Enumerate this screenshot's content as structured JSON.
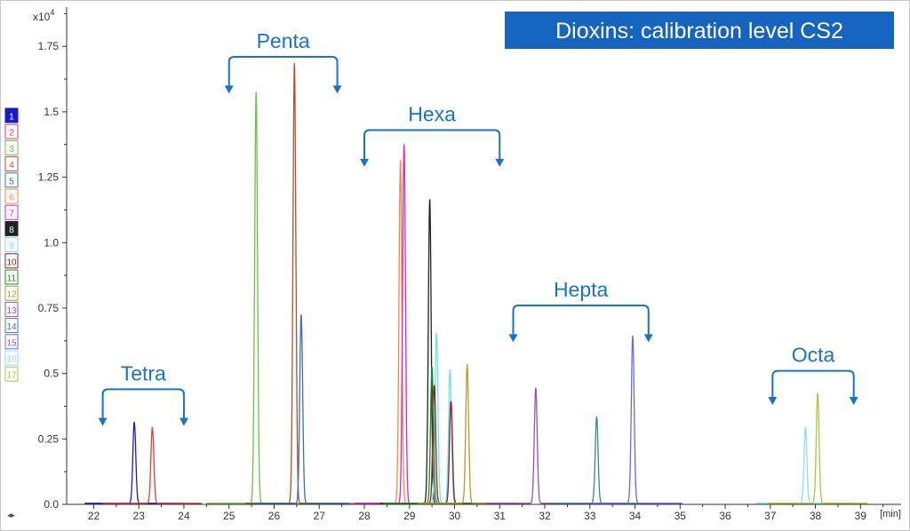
{
  "chart_data": {
    "type": "line",
    "title": "Dioxins: calibration level CS2",
    "xlabel": "[min]",
    "ylabel": "",
    "y_multiplier_label": "x10",
    "y_multiplier_exponent": "4",
    "xlim": [
      21.4,
      39.9
    ],
    "ylim": [
      0,
      1.9
    ],
    "x_ticks": [
      22,
      23,
      24,
      25,
      26,
      27,
      28,
      29,
      30,
      31,
      32,
      33,
      34,
      35,
      36,
      37,
      38,
      39
    ],
    "y_ticks": [
      0.0,
      0.25,
      0.5,
      0.75,
      1.0,
      1.25,
      1.5,
      1.75
    ],
    "y_tick_labels": [
      "0.0",
      "0.25",
      "0.5",
      "0.75",
      "1.0",
      "1.25",
      "1.5",
      "1.75"
    ],
    "grid": false,
    "legend_position": "left",
    "series": [
      {
        "name": "1",
        "color": "#1a1acc",
        "peaks": [
          [
            22.9,
            0.31
          ]
        ]
      },
      {
        "name": "2",
        "color": "#e0403a",
        "peaks": [
          [
            23.3,
            0.29
          ]
        ]
      },
      {
        "name": "3",
        "color": "#6cc04a",
        "peaks": [
          [
            25.6,
            1.57
          ]
        ]
      },
      {
        "name": "4",
        "color": "#b0512c",
        "peaks": [
          [
            26.45,
            1.68
          ]
        ]
      },
      {
        "name": "5",
        "color": "#3a6fb0",
        "peaks": [
          [
            26.6,
            0.72
          ]
        ]
      },
      {
        "name": "6",
        "color": "#f08a3c",
        "peaks": [
          [
            28.8,
            1.31
          ]
        ]
      },
      {
        "name": "7",
        "color": "#e020c8",
        "peaks": [
          [
            28.88,
            1.37
          ]
        ]
      },
      {
        "name": "8",
        "color": "#222222",
        "peaks": [
          [
            29.45,
            1.16
          ]
        ]
      },
      {
        "name": "9",
        "color": "#70e0f0",
        "peaks": [
          [
            29.6,
            0.65
          ],
          [
            29.9,
            0.51
          ]
        ]
      },
      {
        "name": "10",
        "color": "#8a1f1f",
        "peaks": [
          [
            29.55,
            0.45
          ],
          [
            29.92,
            0.39
          ]
        ]
      },
      {
        "name": "11",
        "color": "#1f8a2a",
        "peaks": [
          [
            29.5,
            0.52
          ]
        ]
      },
      {
        "name": "12",
        "color": "#a8a02a",
        "peaks": [
          [
            30.28,
            0.53
          ]
        ]
      },
      {
        "name": "13",
        "color": "#9a50b0",
        "peaks": [
          [
            31.8,
            0.44
          ]
        ]
      },
      {
        "name": "14",
        "color": "#3a8a82",
        "peaks": [
          [
            33.15,
            0.33
          ]
        ]
      },
      {
        "name": "15",
        "color": "#6a6ae8",
        "peaks": [
          [
            33.95,
            0.64
          ]
        ]
      },
      {
        "name": "16",
        "color": "#8ae0f0",
        "peaks": [
          [
            37.78,
            0.29
          ]
        ]
      },
      {
        "name": "17",
        "color": "#a8c83a",
        "peaks": [
          [
            38.05,
            0.42
          ]
        ]
      }
    ],
    "annotations": [
      {
        "label": "Tetra",
        "x_from": 22.2,
        "x_to": 24.0,
        "y_bracket": 0.44,
        "y_arrow": 0.31
      },
      {
        "label": "Penta",
        "x_from": 25.0,
        "x_to": 27.4,
        "y_bracket": 1.71,
        "y_arrow": 1.58
      },
      {
        "label": "Hexa",
        "x_from": 28.0,
        "x_to": 31.0,
        "y_bracket": 1.43,
        "y_arrow": 1.3
      },
      {
        "label": "Hepta",
        "x_from": 31.3,
        "x_to": 34.3,
        "y_bracket": 0.76,
        "y_arrow": 0.63
      },
      {
        "label": "Octa",
        "x_from": 37.05,
        "x_to": 38.85,
        "y_bracket": 0.51,
        "y_arrow": 0.39
      }
    ],
    "colors": {
      "axis": "#333333",
      "annotation": "#1a73c4",
      "title_bg": "#1565c0",
      "title_text": "#ffffff"
    }
  }
}
